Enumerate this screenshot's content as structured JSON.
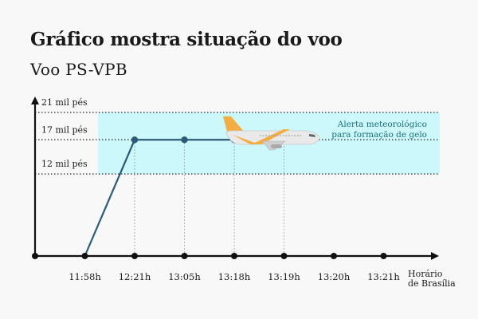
{
  "header": {
    "title": "Gráfico mostra situação do voo",
    "subtitle": "Voo PS-VPB"
  },
  "colors": {
    "background": "#f8f8f8",
    "band": "#cdf8fb",
    "line": "#2c5a77",
    "axis": "#111111"
  },
  "chart_data": {
    "type": "line",
    "title": "Gráfico mostra situação do voo",
    "subtitle": "Voo PS-VPB",
    "xlabel": [
      "Horário",
      "de Brasília"
    ],
    "ylabel": "",
    "categories": [
      "",
      "11:58h",
      "12:21h",
      "13:05h",
      "13:18h",
      "13:19h",
      "13:20h",
      "13:21h"
    ],
    "y_ticks": [
      {
        "label": "21 mil pés",
        "value": 21
      },
      {
        "label": "17 mil pés",
        "value": 17
      },
      {
        "label": "12 mil pés",
        "value": 12
      }
    ],
    "ylim": [
      0,
      21
    ],
    "series": [
      {
        "values": [
          null,
          0,
          17,
          17,
          17,
          17,
          null,
          null
        ]
      }
    ],
    "annotation_band": {
      "from": 12,
      "to": 21,
      "label": [
        "Alerta meteorológico",
        "para formação de gelo"
      ]
    },
    "grid": false,
    "legend": "none"
  },
  "icons": {
    "aircraft": "airplane-icon"
  }
}
